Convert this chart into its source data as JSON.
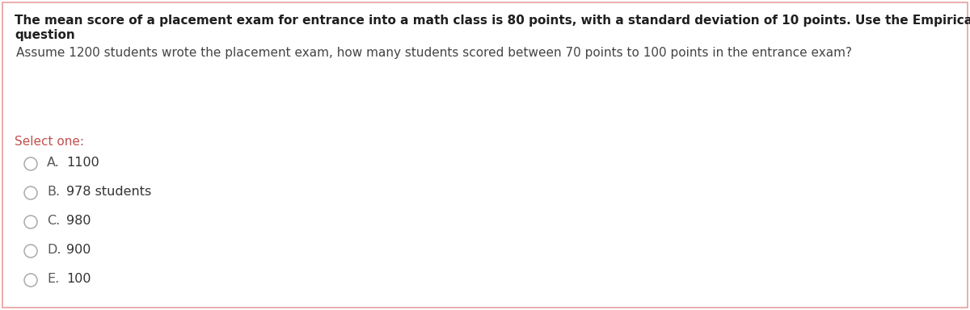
{
  "background_color": "#ffffff",
  "border_color": "#e8a0a0",
  "title_line1": "The mean score of a placement exam for entrance into a math class is 80 points, with a standard deviation of 10 points. Use the Empirical Rule to answer this",
  "title_line2": "question",
  "question_text": "Assume 1200 students wrote the placement exam, how many students scored between 70 points to 100 points in the entrance exam?",
  "select_one_text": "Select one:",
  "options": [
    {
      "letter": "A.",
      "text": "1100"
    },
    {
      "letter": "B.",
      "text": "978 students"
    },
    {
      "letter": "C.",
      "text": "980"
    },
    {
      "letter": "D.",
      "text": "900"
    },
    {
      "letter": "E.",
      "text": "100"
    }
  ],
  "title_color": "#1f1f1f",
  "question_color": "#444444",
  "select_color": "#c0504d",
  "option_letter_color": "#555555",
  "option_text_color": "#333333",
  "circle_color": "#aaaaaa",
  "title_fontsize": 11.0,
  "question_fontsize": 11.0,
  "select_fontsize": 11.0,
  "option_fontsize": 11.5
}
